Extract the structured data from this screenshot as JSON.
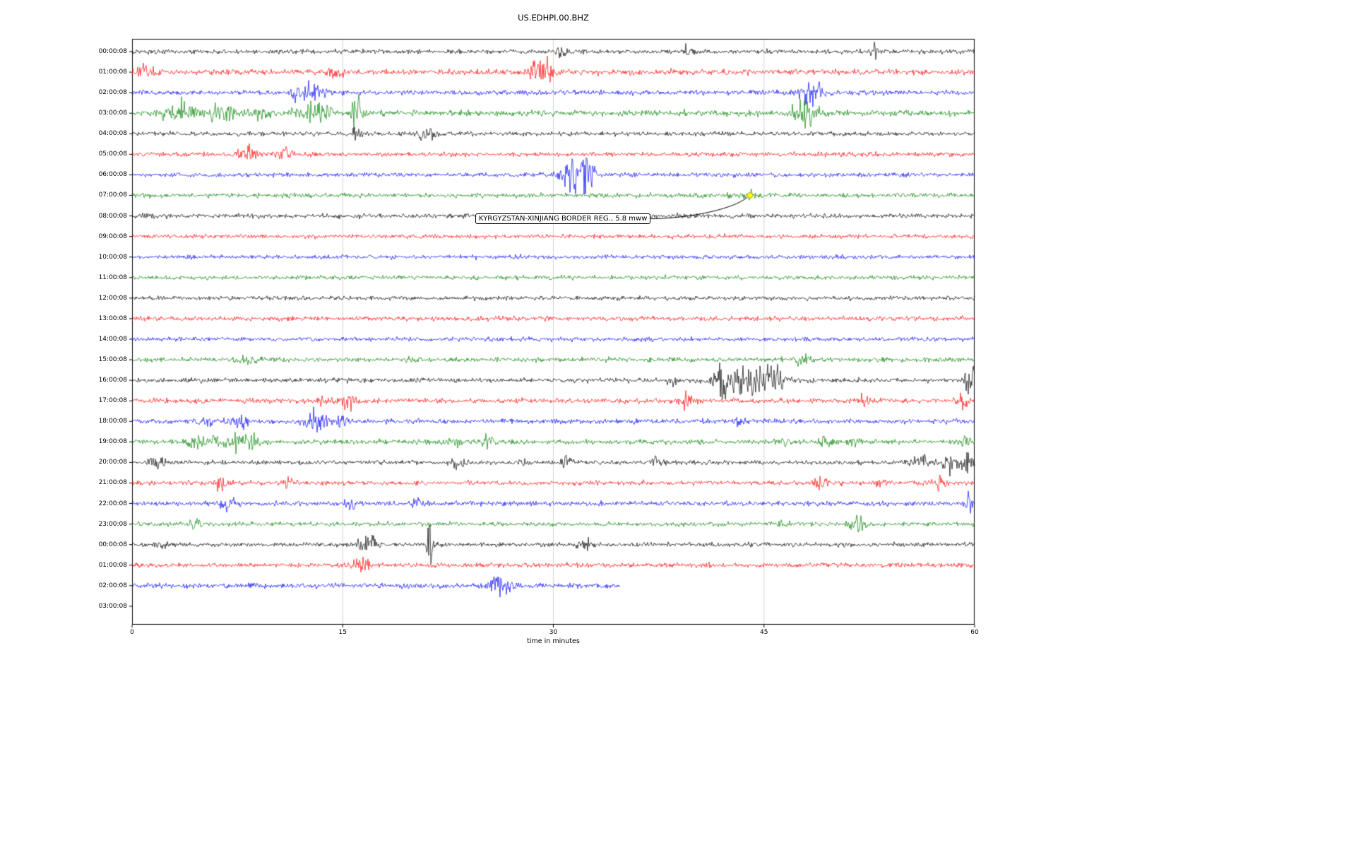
{
  "chart_data": {
    "type": "line",
    "title": "US.EDHPI.00.BHZ",
    "xlabel": "time in minutes",
    "ylabel": "",
    "x_ticks": [
      0,
      15,
      30,
      45,
      60
    ],
    "xlim": [
      0,
      60
    ],
    "grid": "vertical-only",
    "colors": {
      "grid": "#c8c8c8",
      "frame": "#000000",
      "marker": "#ffff00",
      "marker_edge": "#999900",
      "trace_cycle": [
        "#000000",
        "#ff0000",
        "#0000ff",
        "#008000"
      ]
    },
    "annotation": {
      "text": "KYRGYZSTAN-XINJIANG BORDER REG.,  5.8 mww",
      "row_index": 7,
      "marker_minute": 44.0
    },
    "rows": [
      {
        "label": "00:00:08",
        "color": "#000000",
        "noise": 1.2,
        "end": 60,
        "events": [
          [
            30.5,
            2.5,
            0.3
          ],
          [
            39.6,
            4,
            0.25
          ],
          [
            53,
            3.5,
            0.2
          ]
        ]
      },
      {
        "label": "01:00:08",
        "color": "#ff0000",
        "noise": 1.5,
        "end": 60,
        "events": [
          [
            0.6,
            3,
            0.8
          ],
          [
            14.5,
            2.5,
            0.4
          ],
          [
            28.8,
            5,
            0.5
          ],
          [
            29.5,
            3,
            0.4
          ]
        ]
      },
      {
        "label": "02:00:08",
        "color": "#0000ff",
        "noise": 1.3,
        "end": 60,
        "events": [
          [
            12.1,
            5,
            0.6
          ],
          [
            13.2,
            4,
            0.5
          ],
          [
            48,
            5.5,
            0.5
          ],
          [
            48.8,
            4,
            0.4
          ]
        ]
      },
      {
        "label": "03:00:08",
        "color": "#008000",
        "noise": 1.6,
        "end": 60,
        "events": [
          [
            2.9,
            5,
            0.6
          ],
          [
            4,
            4.5,
            0.6
          ],
          [
            6.4,
            5,
            0.7
          ],
          [
            9,
            3,
            0.5
          ],
          [
            12.4,
            4,
            0.6
          ],
          [
            13.8,
            3.5,
            0.5
          ],
          [
            16,
            22,
            0.2
          ],
          [
            47.4,
            4,
            0.3
          ],
          [
            48.2,
            9,
            0.4
          ]
        ]
      },
      {
        "label": "04:00:08",
        "color": "#000000",
        "noise": 1.2,
        "end": 60,
        "events": [
          [
            16,
            2.5,
            0.25
          ],
          [
            20.8,
            4,
            0.3
          ],
          [
            21.4,
            2.5,
            0.2
          ]
        ]
      },
      {
        "label": "05:00:08",
        "color": "#ff0000",
        "noise": 1.2,
        "end": 60,
        "events": [
          [
            7.8,
            2.5,
            0.3
          ],
          [
            8.5,
            6,
            0.3
          ],
          [
            10.9,
            3.5,
            0.35
          ]
        ]
      },
      {
        "label": "06:00:08",
        "color": "#0000ff",
        "noise": 1.2,
        "end": 60,
        "events": [
          [
            30.8,
            3,
            0.4
          ],
          [
            31.8,
            14,
            0.5
          ],
          [
            32.4,
            7,
            0.5
          ]
        ]
      },
      {
        "label": "07:00:08",
        "color": "#008000",
        "noise": 1.2,
        "end": 60,
        "events": [
          [
            44,
            1.5,
            0.4
          ]
        ]
      },
      {
        "label": "08:00:08",
        "color": "#000000",
        "noise": 1.2,
        "end": 60,
        "events": [
          [
            1,
            1,
            0.5
          ]
        ]
      },
      {
        "label": "09:00:08",
        "color": "#ff0000",
        "noise": 1.1,
        "end": 60,
        "events": []
      },
      {
        "label": "10:00:08",
        "color": "#0000ff",
        "noise": 1.1,
        "end": 60,
        "events": []
      },
      {
        "label": "11:00:08",
        "color": "#008000",
        "noise": 1.1,
        "end": 60,
        "events": []
      },
      {
        "label": "12:00:08",
        "color": "#000000",
        "noise": 1.1,
        "end": 60,
        "events": []
      },
      {
        "label": "13:00:08",
        "color": "#ff0000",
        "noise": 1.2,
        "end": 60,
        "events": []
      },
      {
        "label": "14:00:08",
        "color": "#0000ff",
        "noise": 1.1,
        "end": 60,
        "events": []
      },
      {
        "label": "15:00:08",
        "color": "#008000",
        "noise": 1.2,
        "end": 60,
        "events": [
          [
            8.3,
            2.5,
            0.4
          ],
          [
            20,
            2,
            0.3
          ],
          [
            47.8,
            3,
            0.4
          ]
        ]
      },
      {
        "label": "16:00:08",
        "color": "#000000",
        "noise": 1.2,
        "end": 60,
        "events": [
          [
            38.5,
            2.5,
            0.3
          ],
          [
            41.9,
            16,
            0.25
          ],
          [
            43,
            6,
            1
          ],
          [
            44.8,
            5,
            0.9
          ],
          [
            45.9,
            6,
            0.5
          ],
          [
            59.7,
            8,
            0.3
          ]
        ]
      },
      {
        "label": "17:00:08",
        "color": "#ff0000",
        "noise": 1.3,
        "end": 60,
        "events": [
          [
            13.7,
            3,
            0.35
          ],
          [
            15.4,
            5,
            0.4
          ],
          [
            39.5,
            3.5,
            0.3
          ],
          [
            52.2,
            3.5,
            0.3
          ],
          [
            59.2,
            4,
            0.3
          ]
        ]
      },
      {
        "label": "18:00:08",
        "color": "#0000ff",
        "noise": 1.3,
        "end": 60,
        "events": [
          [
            5.5,
            2,
            0.4
          ],
          [
            7.6,
            4,
            0.4
          ],
          [
            12.8,
            4.5,
            0.4
          ],
          [
            13.6,
            3.5,
            0.35
          ],
          [
            14.9,
            4,
            0.3
          ],
          [
            43.3,
            2,
            0.3
          ]
        ]
      },
      {
        "label": "19:00:08",
        "color": "#008000",
        "noise": 1.3,
        "end": 60,
        "events": [
          [
            4.7,
            4,
            0.5
          ],
          [
            6,
            3.5,
            0.4
          ],
          [
            7.5,
            4,
            0.5
          ],
          [
            8.5,
            3,
            0.4
          ],
          [
            23,
            2,
            0.3
          ],
          [
            25.3,
            4,
            0.4
          ],
          [
            46.5,
            2,
            0.3
          ],
          [
            49.3,
            3,
            0.35
          ],
          [
            51.5,
            2,
            0.3
          ],
          [
            59.3,
            4,
            0.35
          ]
        ]
      },
      {
        "label": "20:00:08",
        "color": "#000000",
        "noise": 1.2,
        "end": 60,
        "events": [
          [
            1.8,
            3.5,
            0.4
          ],
          [
            23.2,
            4,
            0.3
          ],
          [
            28,
            2,
            0.2
          ],
          [
            31,
            3,
            0.3
          ],
          [
            37.5,
            2,
            0.3
          ],
          [
            56.2,
            5,
            0.4
          ],
          [
            58.3,
            6,
            0.5
          ],
          [
            59.5,
            5,
            0.3
          ]
        ]
      },
      {
        "label": "21:00:08",
        "color": "#ff0000",
        "noise": 1.2,
        "end": 60,
        "events": [
          [
            6.3,
            5,
            0.3
          ],
          [
            11,
            2,
            0.3
          ],
          [
            49,
            4.5,
            0.3
          ],
          [
            53.2,
            3,
            0.3
          ],
          [
            57.5,
            3.5,
            0.3
          ]
        ]
      },
      {
        "label": "22:00:08",
        "color": "#0000ff",
        "noise": 1.3,
        "end": 60,
        "events": [
          [
            6.7,
            3.5,
            0.4
          ],
          [
            15.5,
            2,
            0.3
          ],
          [
            20.5,
            4,
            0.3
          ],
          [
            59.7,
            5,
            0.3
          ]
        ]
      },
      {
        "label": "23:00:08",
        "color": "#008000",
        "noise": 1.2,
        "end": 60,
        "events": [
          [
            4.5,
            3,
            0.3
          ],
          [
            46,
            2,
            0.3
          ],
          [
            51.7,
            4,
            0.4
          ]
        ]
      },
      {
        "label": "00:00:08",
        "color": "#000000",
        "noise": 1.2,
        "end": 60,
        "events": [
          [
            2,
            2,
            0.3
          ],
          [
            16.4,
            3.5,
            0.4
          ],
          [
            17.3,
            2.5,
            0.3
          ],
          [
            21.2,
            22,
            0.12
          ],
          [
            32.2,
            3.5,
            0.4
          ]
        ]
      },
      {
        "label": "01:00:08",
        "color": "#ff0000",
        "noise": 1.2,
        "end": 60,
        "events": [
          [
            16,
            4.5,
            0.3
          ],
          [
            16.6,
            3,
            0.25
          ]
        ]
      },
      {
        "label": "02:00:08",
        "color": "#0000ff",
        "noise": 1.4,
        "end": 34.8,
        "events": [
          [
            25.8,
            4.5,
            0.5
          ],
          [
            26.6,
            3.5,
            0.4
          ]
        ]
      },
      {
        "label": "03:00:08",
        "color": "#008000",
        "noise": 0,
        "end": 0,
        "events": []
      }
    ]
  }
}
